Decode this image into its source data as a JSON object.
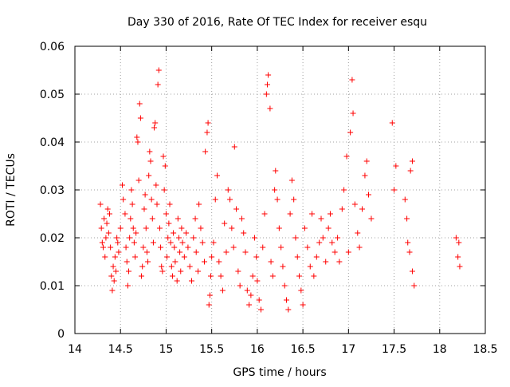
{
  "chart_data": {
    "type": "scatter",
    "title": "Day 330 of 2016, Rate Of TEC Index for receiver esqu",
    "xlabel": "GPS time / hours",
    "ylabel": "ROTI / TECUs",
    "xlim": [
      14,
      18.5
    ],
    "ylim": [
      0,
      0.06
    ],
    "grid": true,
    "x_ticks": [
      "14",
      "14.5",
      "15",
      "15.5",
      "16",
      "16.5",
      "17",
      "17.5",
      "18",
      "18.5"
    ],
    "y_ticks": [
      "0",
      "0.01",
      "0.02",
      "0.03",
      "0.04",
      "0.05",
      "0.06"
    ],
    "marker_color": "#ff0000",
    "marker": "plus",
    "series": [
      {
        "name": "ROTI",
        "points": [
          [
            14.28,
            0.027
          ],
          [
            14.29,
            0.022
          ],
          [
            14.3,
            0.019
          ],
          [
            14.31,
            0.018
          ],
          [
            14.32,
            0.024
          ],
          [
            14.33,
            0.016
          ],
          [
            14.34,
            0.02
          ],
          [
            14.35,
            0.023
          ],
          [
            14.36,
            0.026
          ],
          [
            14.37,
            0.021
          ],
          [
            14.38,
            0.025
          ],
          [
            14.39,
            0.018
          ],
          [
            14.4,
            0.012
          ],
          [
            14.41,
            0.009
          ],
          [
            14.42,
            0.014
          ],
          [
            14.43,
            0.011
          ],
          [
            14.44,
            0.016
          ],
          [
            14.45,
            0.013
          ],
          [
            14.46,
            0.02
          ],
          [
            14.47,
            0.019
          ],
          [
            14.48,
            0.017
          ],
          [
            14.5,
            0.022
          ],
          [
            14.52,
            0.031
          ],
          [
            14.53,
            0.028
          ],
          [
            14.55,
            0.025
          ],
          [
            14.56,
            0.018
          ],
          [
            14.57,
            0.015
          ],
          [
            14.58,
            0.01
          ],
          [
            14.59,
            0.013
          ],
          [
            14.6,
            0.02
          ],
          [
            14.61,
            0.024
          ],
          [
            14.62,
            0.03
          ],
          [
            14.63,
            0.027
          ],
          [
            14.64,
            0.022
          ],
          [
            14.65,
            0.019
          ],
          [
            14.66,
            0.016
          ],
          [
            14.67,
            0.021
          ],
          [
            14.68,
            0.041
          ],
          [
            14.69,
            0.04
          ],
          [
            14.7,
            0.032
          ],
          [
            14.71,
            0.048
          ],
          [
            14.72,
            0.045
          ],
          [
            14.73,
            0.012
          ],
          [
            14.74,
            0.014
          ],
          [
            14.75,
            0.018
          ],
          [
            14.76,
            0.026
          ],
          [
            14.77,
            0.029
          ],
          [
            14.78,
            0.022
          ],
          [
            14.79,
            0.017
          ],
          [
            14.8,
            0.015
          ],
          [
            14.81,
            0.033
          ],
          [
            14.82,
            0.038
          ],
          [
            14.83,
            0.036
          ],
          [
            14.84,
            0.028
          ],
          [
            14.85,
            0.024
          ],
          [
            14.86,
            0.019
          ],
          [
            14.87,
            0.043
          ],
          [
            14.88,
            0.044
          ],
          [
            14.89,
            0.031
          ],
          [
            14.9,
            0.027
          ],
          [
            14.91,
            0.052
          ],
          [
            14.92,
            0.055
          ],
          [
            14.93,
            0.022
          ],
          [
            14.94,
            0.018
          ],
          [
            14.95,
            0.014
          ],
          [
            14.96,
            0.013
          ],
          [
            14.97,
            0.037
          ],
          [
            14.98,
            0.03
          ],
          [
            14.99,
            0.035
          ],
          [
            15.0,
            0.025
          ],
          [
            15.01,
            0.016
          ],
          [
            15.02,
            0.02
          ],
          [
            15.03,
            0.023
          ],
          [
            15.04,
            0.027
          ],
          [
            15.05,
            0.019
          ],
          [
            15.06,
            0.014
          ],
          [
            15.07,
            0.012
          ],
          [
            15.08,
            0.021
          ],
          [
            15.09,
            0.018
          ],
          [
            15.1,
            0.015
          ],
          [
            15.12,
            0.011
          ],
          [
            15.13,
            0.024
          ],
          [
            15.14,
            0.02
          ],
          [
            15.15,
            0.017
          ],
          [
            15.16,
            0.013
          ],
          [
            15.17,
            0.022
          ],
          [
            15.18,
            0.019
          ],
          [
            15.2,
            0.016
          ],
          [
            15.22,
            0.021
          ],
          [
            15.24,
            0.018
          ],
          [
            15.26,
            0.014
          ],
          [
            15.28,
            0.011
          ],
          [
            15.3,
            0.02
          ],
          [
            15.32,
            0.024
          ],
          [
            15.33,
            0.017
          ],
          [
            15.35,
            0.013
          ],
          [
            15.36,
            0.027
          ],
          [
            15.38,
            0.022
          ],
          [
            15.4,
            0.019
          ],
          [
            15.42,
            0.015
          ],
          [
            15.43,
            0.038
          ],
          [
            15.45,
            0.042
          ],
          [
            15.46,
            0.044
          ],
          [
            15.47,
            0.006
          ],
          [
            15.48,
            0.008
          ],
          [
            15.49,
            0.012
          ],
          [
            15.5,
            0.016
          ],
          [
            15.52,
            0.019
          ],
          [
            15.54,
            0.028
          ],
          [
            15.56,
            0.033
          ],
          [
            15.58,
            0.015
          ],
          [
            15.6,
            0.012
          ],
          [
            15.62,
            0.009
          ],
          [
            15.64,
            0.023
          ],
          [
            15.66,
            0.017
          ],
          [
            15.68,
            0.03
          ],
          [
            15.7,
            0.028
          ],
          [
            15.72,
            0.022
          ],
          [
            15.74,
            0.018
          ],
          [
            15.75,
            0.039
          ],
          [
            15.77,
            0.026
          ],
          [
            15.79,
            0.013
          ],
          [
            15.81,
            0.01
          ],
          [
            15.83,
            0.024
          ],
          [
            15.85,
            0.021
          ],
          [
            15.87,
            0.017
          ],
          [
            15.89,
            0.009
          ],
          [
            15.91,
            0.006
          ],
          [
            15.93,
            0.008
          ],
          [
            15.95,
            0.012
          ],
          [
            15.97,
            0.02
          ],
          [
            15.99,
            0.016
          ],
          [
            16.0,
            0.011
          ],
          [
            16.02,
            0.007
          ],
          [
            16.04,
            0.005
          ],
          [
            16.06,
            0.018
          ],
          [
            16.08,
            0.025
          ],
          [
            16.1,
            0.05
          ],
          [
            16.11,
            0.052
          ],
          [
            16.12,
            0.054
          ],
          [
            16.14,
            0.047
          ],
          [
            16.15,
            0.015
          ],
          [
            16.17,
            0.012
          ],
          [
            16.19,
            0.03
          ],
          [
            16.2,
            0.034
          ],
          [
            16.22,
            0.028
          ],
          [
            16.24,
            0.022
          ],
          [
            16.26,
            0.018
          ],
          [
            16.28,
            0.014
          ],
          [
            16.3,
            0.01
          ],
          [
            16.32,
            0.007
          ],
          [
            16.34,
            0.005
          ],
          [
            16.36,
            0.025
          ],
          [
            16.38,
            0.032
          ],
          [
            16.4,
            0.028
          ],
          [
            16.42,
            0.02
          ],
          [
            16.44,
            0.016
          ],
          [
            16.46,
            0.012
          ],
          [
            16.48,
            0.009
          ],
          [
            16.5,
            0.006
          ],
          [
            16.52,
            0.022
          ],
          [
            16.55,
            0.018
          ],
          [
            16.58,
            0.014
          ],
          [
            16.6,
            0.025
          ],
          [
            16.62,
            0.012
          ],
          [
            16.65,
            0.016
          ],
          [
            16.68,
            0.019
          ],
          [
            16.7,
            0.024
          ],
          [
            16.72,
            0.02
          ],
          [
            16.75,
            0.015
          ],
          [
            16.78,
            0.022
          ],
          [
            16.8,
            0.025
          ],
          [
            16.82,
            0.019
          ],
          [
            16.85,
            0.017
          ],
          [
            16.88,
            0.02
          ],
          [
            16.9,
            0.015
          ],
          [
            16.93,
            0.026
          ],
          [
            16.95,
            0.03
          ],
          [
            16.98,
            0.037
          ],
          [
            17.0,
            0.017
          ],
          [
            17.02,
            0.042
          ],
          [
            17.04,
            0.053
          ],
          [
            17.05,
            0.046
          ],
          [
            17.07,
            0.027
          ],
          [
            17.1,
            0.021
          ],
          [
            17.12,
            0.018
          ],
          [
            17.15,
            0.026
          ],
          [
            17.18,
            0.033
          ],
          [
            17.2,
            0.036
          ],
          [
            17.22,
            0.029
          ],
          [
            17.25,
            0.024
          ],
          [
            17.48,
            0.044
          ],
          [
            17.5,
            0.03
          ],
          [
            17.52,
            0.035
          ],
          [
            17.62,
            0.028
          ],
          [
            17.64,
            0.024
          ],
          [
            17.65,
            0.019
          ],
          [
            17.67,
            0.017
          ],
          [
            17.68,
            0.034
          ],
          [
            17.7,
            0.036
          ],
          [
            17.72,
            0.01
          ],
          [
            17.7,
            0.013
          ],
          [
            18.18,
            0.02
          ],
          [
            18.2,
            0.016
          ],
          [
            18.22,
            0.014
          ],
          [
            18.21,
            0.019
          ]
        ]
      }
    ]
  }
}
